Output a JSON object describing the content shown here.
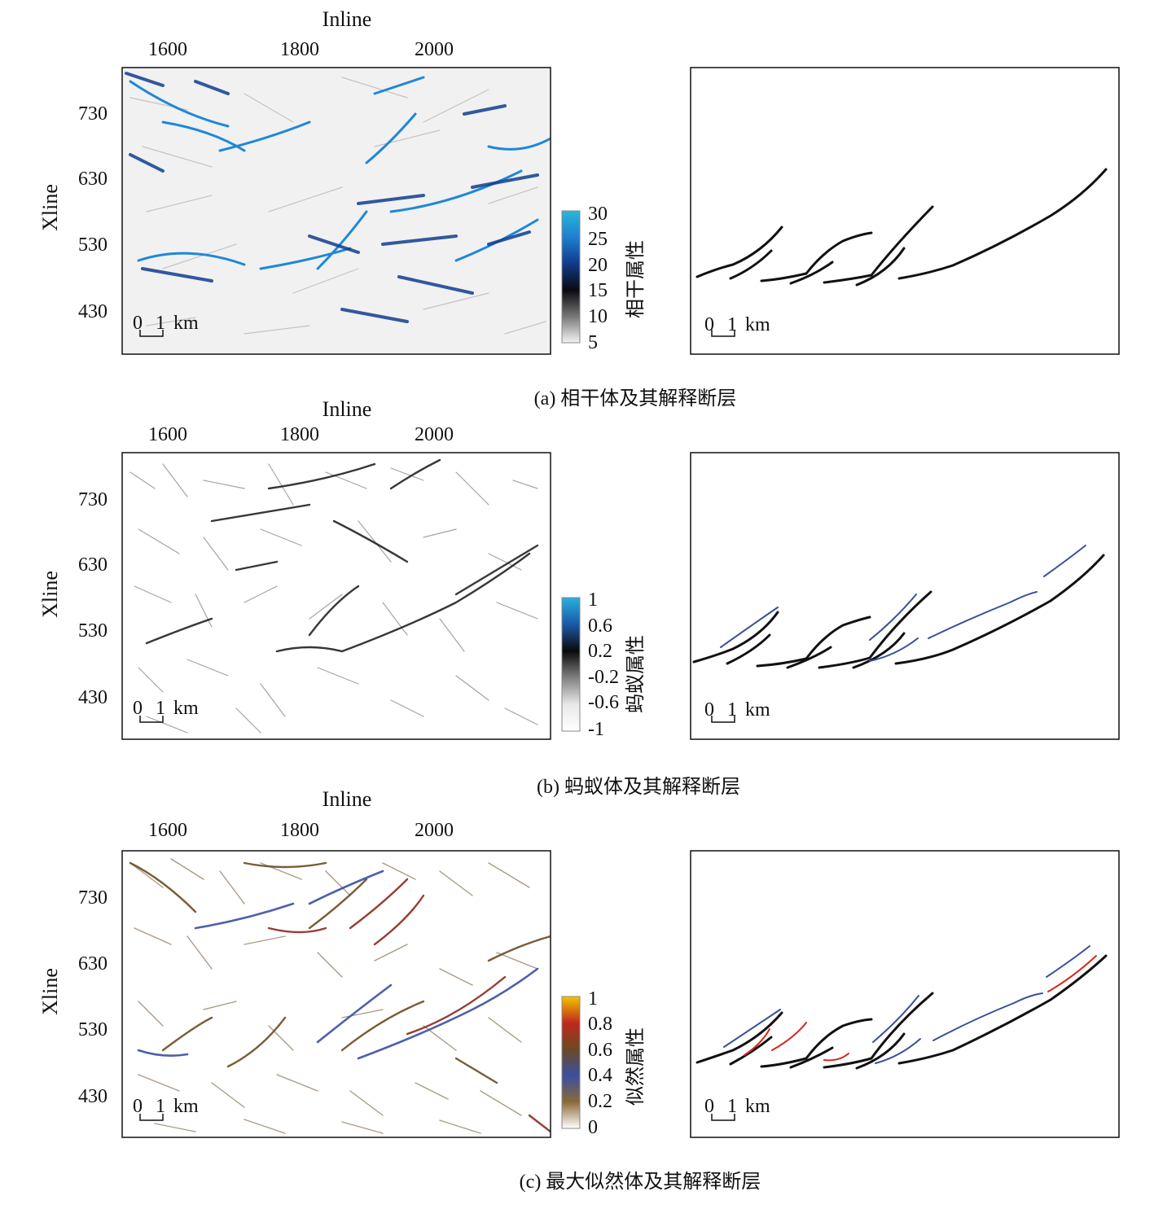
{
  "panels": [
    {
      "id": "a",
      "caption": "(a) 相干体及其解释断层",
      "inline_label": "Inline",
      "xline_label": "Xline",
      "inline_ticks": [
        "1600",
        "1800",
        "2000"
      ],
      "xline_ticks": [
        "730",
        "630",
        "530",
        "430"
      ],
      "scale_bar": {
        "zero": "0",
        "one": "1",
        "unit": "km"
      },
      "colorbar": {
        "title": "相干属性",
        "ticks": [
          "30",
          "25",
          "20",
          "15",
          "10",
          "5"
        ],
        "colors": [
          "#29b7d9",
          "#1e7fd0",
          "#123a8c",
          "#0a0a10",
          "#777777",
          "#f4f4f4"
        ]
      },
      "attribute_colors": [
        "#1e88d8",
        "#0f3d8f",
        "#8a8a8a"
      ],
      "interpreted_fault_colors": [
        "#111111"
      ]
    },
    {
      "id": "b",
      "caption": "(b) 蚂蚁体及其解释断层",
      "inline_label": "Inline",
      "xline_label": "Xline",
      "inline_ticks": [
        "1600",
        "1800",
        "2000"
      ],
      "xline_ticks": [
        "730",
        "630",
        "530",
        "430"
      ],
      "scale_bar": {
        "zero": "0",
        "one": "1",
        "unit": "km"
      },
      "colorbar": {
        "title": "蚂蚁属性",
        "ticks": [
          "1",
          "0.6",
          "0.2",
          "-0.2",
          "-0.6",
          "-1"
        ],
        "colors": [
          "#2ab0dd",
          "#1a5aa8",
          "#0a0a0a",
          "#808080",
          "#e8e8e8",
          "#ffffff"
        ]
      },
      "attribute_colors": [
        "#555555",
        "#222222"
      ],
      "interpreted_fault_colors": [
        "#111111",
        "#3a4f9a"
      ]
    },
    {
      "id": "c",
      "caption": "(c) 最大似然体及其解释断层",
      "inline_label": "Inline",
      "xline_label": "Xline",
      "inline_ticks": [
        "1600",
        "1800",
        "2000"
      ],
      "xline_ticks": [
        "730",
        "630",
        "530",
        "430"
      ],
      "scale_bar": {
        "zero": "0",
        "one": "1",
        "unit": "km"
      },
      "colorbar": {
        "title": "似然属性",
        "ticks": [
          "1",
          "0.8",
          "0.6",
          "0.4",
          "0.2",
          "0"
        ],
        "colors": [
          "#f5c400",
          "#c0281e",
          "#6a4a22",
          "#3b4fa0",
          "#8a6a38",
          "#ffffff"
        ]
      },
      "attribute_colors": [
        "#6b4b22",
        "#3b4fa0",
        "#8b2a1e",
        "#8a8a8a"
      ],
      "interpreted_fault_colors": [
        "#111111",
        "#3a4f9a",
        "#d8261c"
      ]
    }
  ]
}
